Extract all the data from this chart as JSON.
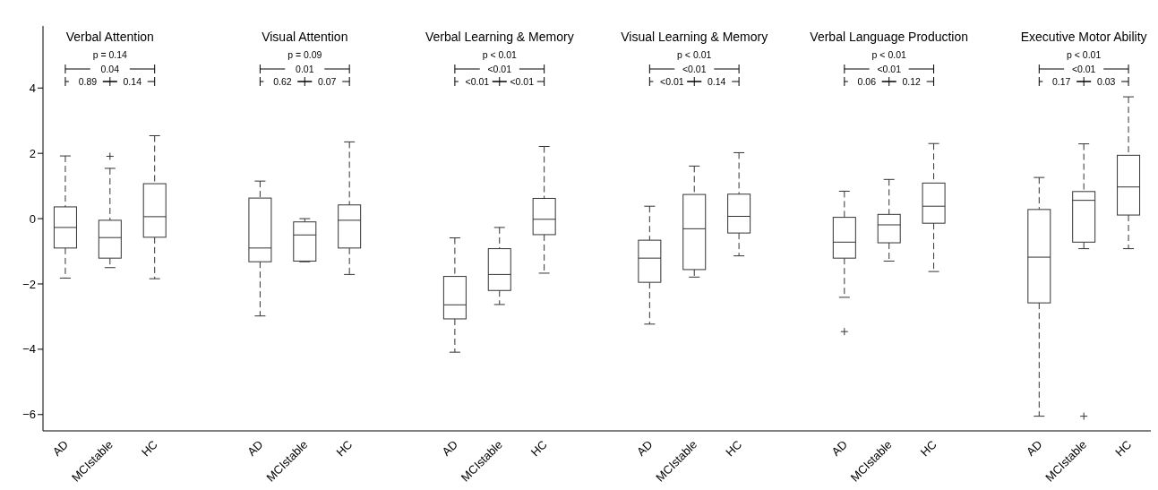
{
  "chart_data": {
    "type": "box",
    "categories": [
      "AD",
      "MCIstable",
      "HC",
      "AD",
      "MCIstable",
      "HC",
      "AD",
      "MCIstable",
      "HC",
      "AD",
      "MCIstable",
      "HC",
      "AD",
      "MCIstable",
      "HC",
      "AD",
      "MCIstable",
      "HC"
    ],
    "ylim": [
      -6.5,
      5.9
    ],
    "yticks": [
      -6,
      -4,
      -2,
      0,
      2,
      4
    ],
    "marker": "cross",
    "color": "#333333",
    "boxes": [
      {
        "low": -1.82,
        "q1": -0.9,
        "median": -0.27,
        "q3": 0.36,
        "high": 1.92
      },
      {
        "low": -1.5,
        "q1": -1.21,
        "median": -0.58,
        "q3": -0.05,
        "high": 1.54,
        "outliers": [
          1.91
        ]
      },
      {
        "low": -1.84,
        "q1": -0.57,
        "median": 0.06,
        "q3": 1.07,
        "high": 2.54
      },
      {
        "low": -2.98,
        "q1": -1.32,
        "median": -0.9,
        "q3": 0.63,
        "high": 1.15
      },
      {
        "low": -1.32,
        "q1": -1.3,
        "median": -0.5,
        "q3": -0.1,
        "high": 0.0
      },
      {
        "low": -1.71,
        "q1": -0.9,
        "median": -0.05,
        "q3": 0.42,
        "high": 2.35
      },
      {
        "low": -4.09,
        "q1": -3.07,
        "median": -2.64,
        "q3": -1.77,
        "high": -0.59
      },
      {
        "low": -2.63,
        "q1": -2.2,
        "median": -1.71,
        "q3": -0.92,
        "high": -0.27
      },
      {
        "low": -1.67,
        "q1": -0.49,
        "median": -0.02,
        "q3": 0.62,
        "high": 2.21
      },
      {
        "low": -3.23,
        "q1": -1.95,
        "median": -1.21,
        "q3": -0.66,
        "high": 0.38
      },
      {
        "low": -1.79,
        "q1": -1.56,
        "median": -0.31,
        "q3": 0.74,
        "high": 1.61
      },
      {
        "low": -1.14,
        "q1": -0.44,
        "median": 0.07,
        "q3": 0.75,
        "high": 2.02
      },
      {
        "low": -2.41,
        "q1": -1.21,
        "median": -0.72,
        "q3": 0.04,
        "high": 0.84,
        "outliers": [
          -3.46
        ]
      },
      {
        "low": -1.3,
        "q1": -0.74,
        "median": -0.19,
        "q3": 0.13,
        "high": 1.2
      },
      {
        "low": -1.62,
        "q1": -0.14,
        "median": 0.38,
        "q3": 1.09,
        "high": 2.3
      },
      {
        "low": -6.05,
        "q1": -2.58,
        "median": -1.18,
        "q3": 0.28,
        "high": 1.26
      },
      {
        "low": -0.92,
        "q1": -0.72,
        "median": 0.56,
        "q3": 0.83,
        "high": 2.29,
        "outliers": [
          -6.05
        ]
      },
      {
        "low": -0.92,
        "q1": 0.11,
        "median": 0.97,
        "q3": 1.94,
        "high": 3.73
      }
    ],
    "annotations": [
      "Verbal Attention",
      "p = 0.14",
      "0.04",
      "0.89",
      "0.14",
      "Visual Attention",
      "p = 0.09",
      "0.01",
      "0.62",
      "0.07",
      "Verbal Learning & Memory",
      "p < 0.01",
      "<0.01",
      "<0.01",
      "<0.01",
      "Visual Learning & Memory",
      "p < 0.01",
      "<0.01",
      "<0.01",
      "0.14",
      "Verbal Language Production",
      "p < 0.01",
      "<0.01",
      "0.06",
      "0.12",
      "Executive Motor Ability",
      "p < 0.01",
      "<0.01",
      "0.17",
      "0.03"
    ]
  }
}
